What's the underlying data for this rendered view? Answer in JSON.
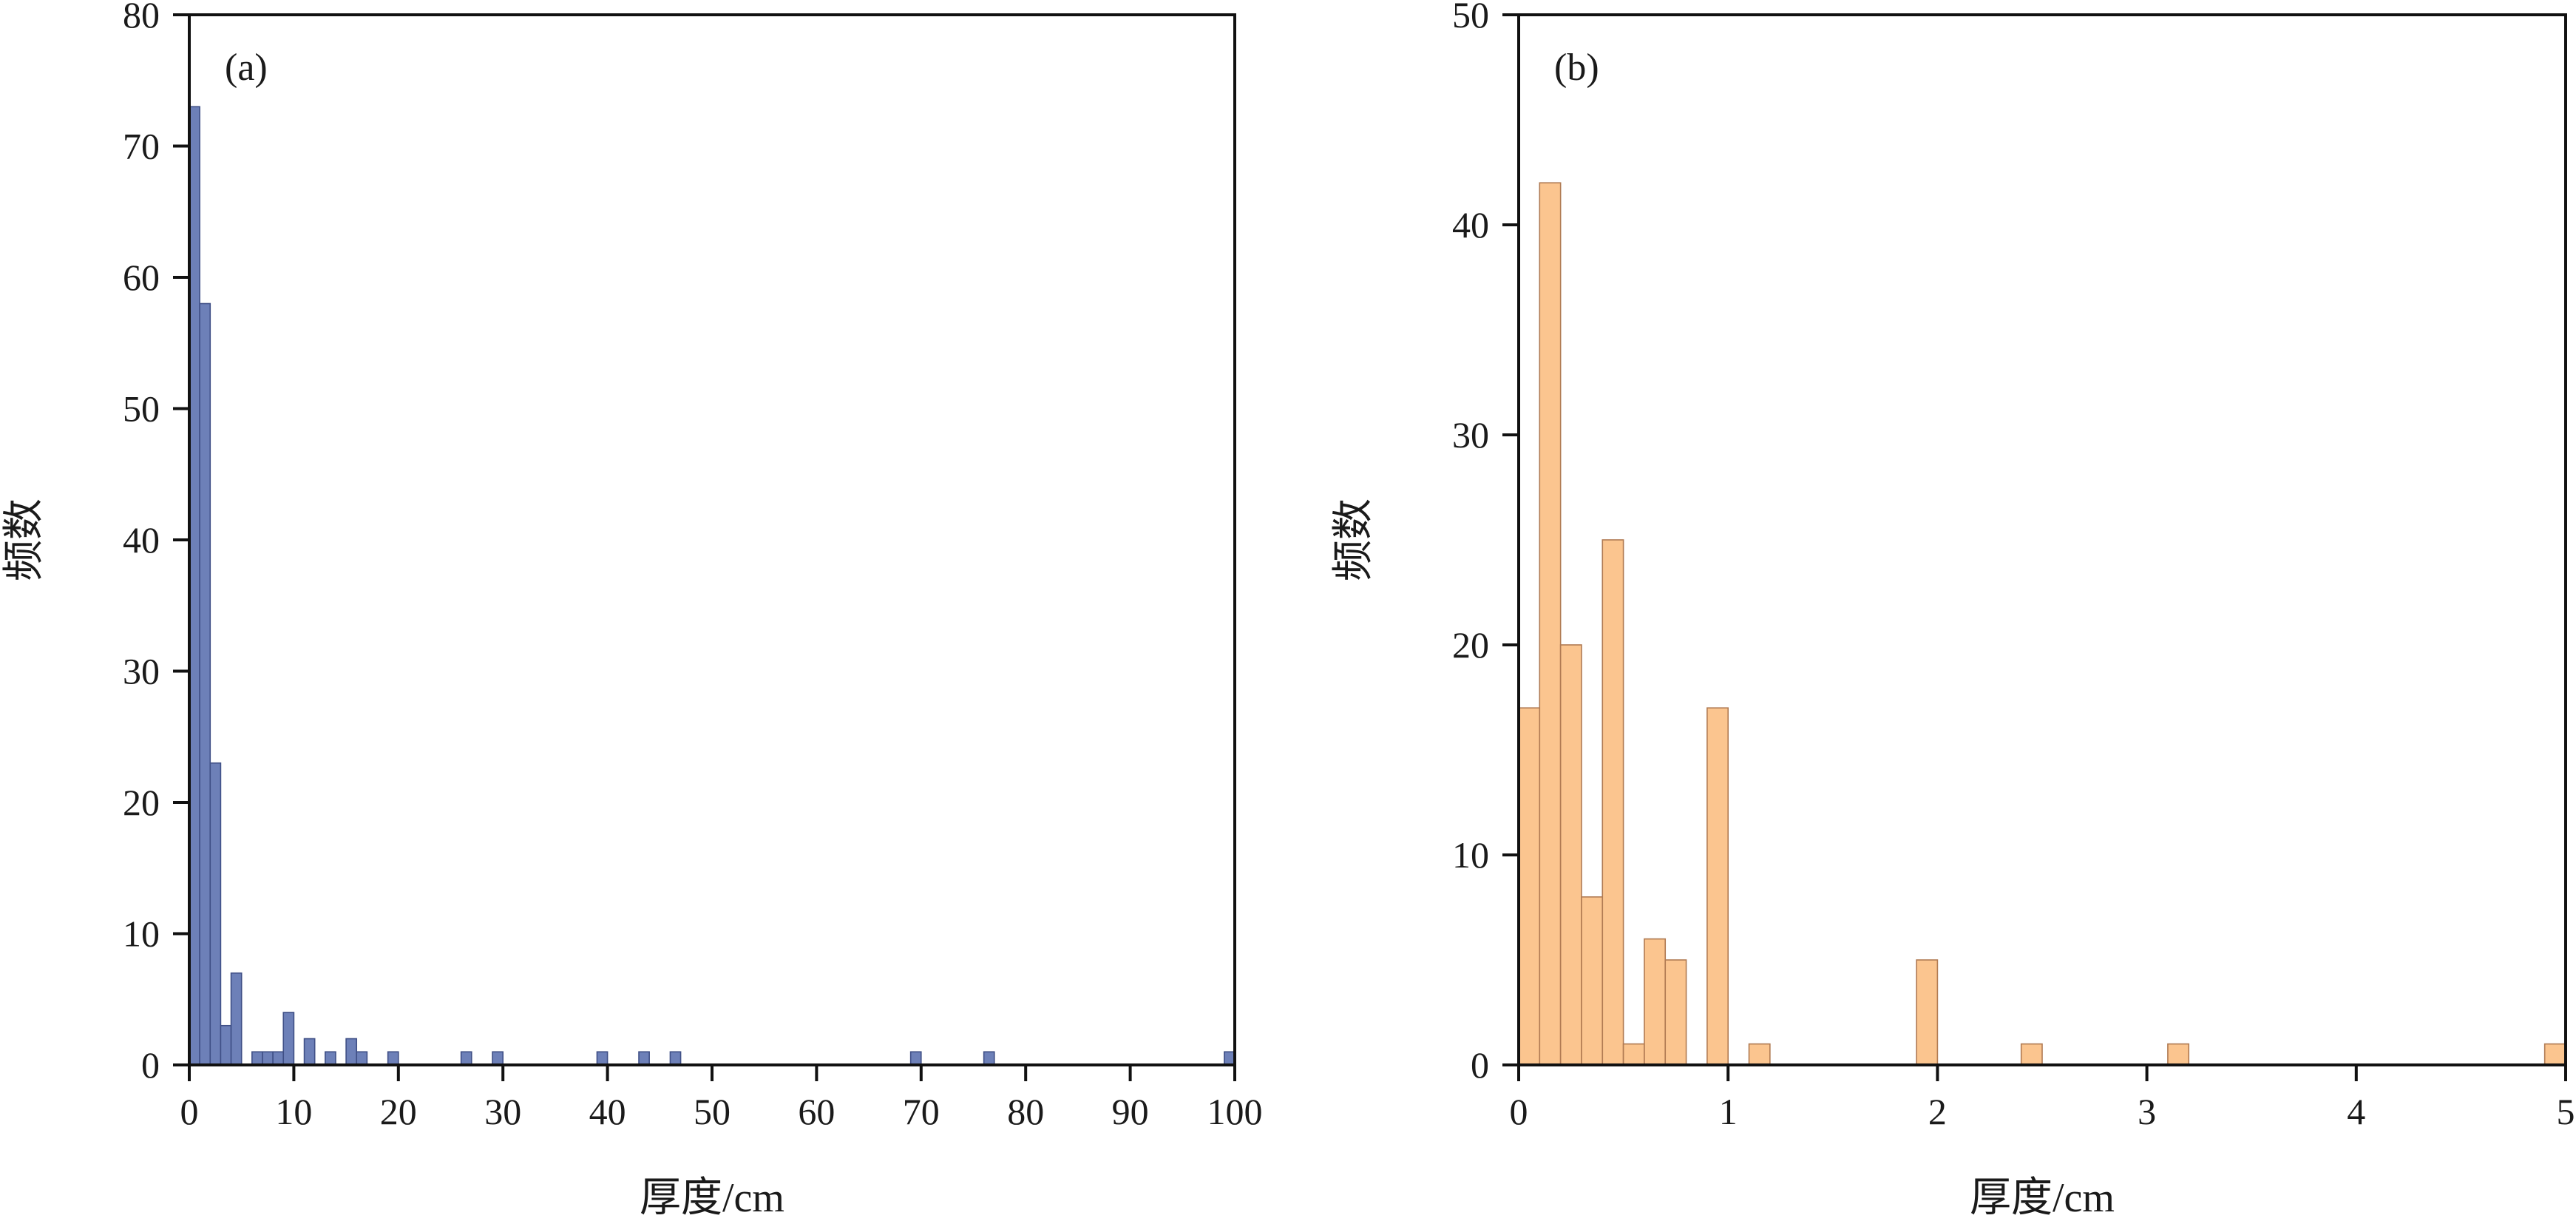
{
  "chart_data": [
    {
      "type": "bar",
      "panel_label": "(a)",
      "xlabel": "厚度/cm",
      "ylabel": "频数",
      "xlim": [
        0,
        100
      ],
      "ylim": [
        0,
        80
      ],
      "xticks": [
        "0",
        "10",
        "20",
        "30",
        "40",
        "50",
        "60",
        "70",
        "80",
        "90",
        "100"
      ],
      "yticks": [
        "0",
        "10",
        "20",
        "30",
        "40",
        "50",
        "60",
        "70",
        "80"
      ],
      "bin_width": 1,
      "bars": [
        {
          "x": 0,
          "value": 73
        },
        {
          "x": 1,
          "value": 58
        },
        {
          "x": 2,
          "value": 23
        },
        {
          "x": 3,
          "value": 3
        },
        {
          "x": 4,
          "value": 7
        },
        {
          "x": 6,
          "value": 1
        },
        {
          "x": 7,
          "value": 1
        },
        {
          "x": 8,
          "value": 1
        },
        {
          "x": 9,
          "value": 4
        },
        {
          "x": 11,
          "value": 2
        },
        {
          "x": 13,
          "value": 1
        },
        {
          "x": 15,
          "value": 2
        },
        {
          "x": 16,
          "value": 1
        },
        {
          "x": 19,
          "value": 1
        },
        {
          "x": 26,
          "value": 1
        },
        {
          "x": 29,
          "value": 1
        },
        {
          "x": 39,
          "value": 1
        },
        {
          "x": 43,
          "value": 1
        },
        {
          "x": 46,
          "value": 1
        },
        {
          "x": 69,
          "value": 1
        },
        {
          "x": 76,
          "value": 1
        },
        {
          "x": 99,
          "value": 1
        }
      ],
      "fill": "#6d80b8",
      "stroke": "#3f4f86",
      "grid": false
    },
    {
      "type": "bar",
      "panel_label": "(b)",
      "xlabel": "厚度/cm",
      "ylabel": "频数",
      "xlim": [
        0,
        5
      ],
      "ylim": [
        0,
        50
      ],
      "xticks": [
        "0",
        "1",
        "2",
        "3",
        "4",
        "5"
      ],
      "yticks": [
        "0",
        "10",
        "20",
        "30",
        "40",
        "50"
      ],
      "bin_width": 0.1,
      "bars": [
        {
          "x": 0.0,
          "value": 17
        },
        {
          "x": 0.1,
          "value": 42
        },
        {
          "x": 0.2,
          "value": 20
        },
        {
          "x": 0.3,
          "value": 8
        },
        {
          "x": 0.4,
          "value": 25
        },
        {
          "x": 0.5,
          "value": 1
        },
        {
          "x": 0.6,
          "value": 6
        },
        {
          "x": 0.7,
          "value": 5
        },
        {
          "x": 0.9,
          "value": 17
        },
        {
          "x": 1.1,
          "value": 1
        },
        {
          "x": 1.9,
          "value": 5
        },
        {
          "x": 2.4,
          "value": 1
        },
        {
          "x": 3.1,
          "value": 1
        },
        {
          "x": 4.9,
          "value": 1
        }
      ],
      "fill": "#fbc58f",
      "stroke": "#b07a52",
      "grid": false
    }
  ]
}
